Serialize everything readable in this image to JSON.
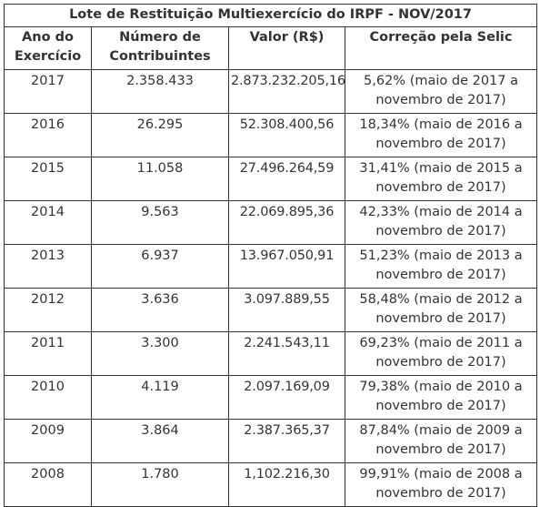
{
  "table": {
    "title": "Lote de Restituição Multiexercício do IRPF - NOV/2017",
    "headers": [
      "Ano do Exercício",
      "Número de Contribuintes",
      "Valor (R$)",
      "Correção pela Selic"
    ],
    "rows": [
      {
        "ano": "2017",
        "contribuintes": "2.358.433",
        "valor": "2.873.232.205,16",
        "correcao": "5,62% (maio de 2017 a novembro de 2017)"
      },
      {
        "ano": "2016",
        "contribuintes": "26.295",
        "valor": "52.308.400,56",
        "correcao": "18,34% (maio de 2016 a novembro de 2017)"
      },
      {
        "ano": "2015",
        "contribuintes": "11.058",
        "valor": "27.496.264,59",
        "correcao": "31,41% (maio de 2015 a novembro de 2017)"
      },
      {
        "ano": "2014",
        "contribuintes": "9.563",
        "valor": "22.069.895,36",
        "correcao": "42,33% (maio de 2014 a novembro de 2017)"
      },
      {
        "ano": "2013",
        "contribuintes": "6.937",
        "valor": "13.967.050,91",
        "correcao": "51,23% (maio de 2013 a novembro de 2017)"
      },
      {
        "ano": "2012",
        "contribuintes": "3.636",
        "valor": "3.097.889,55",
        "correcao": "58,48% (maio de 2012 a novembro de 2017)"
      },
      {
        "ano": "2011",
        "contribuintes": "3.300",
        "valor": "2.241.543,11",
        "correcao": "69,23% (maio de 2011 a novembro de 2017)"
      },
      {
        "ano": "2010",
        "contribuintes": "4.119",
        "valor": "2.097.169,09",
        "correcao": "79,38% (maio de 2010 a novembro de 2017)"
      },
      {
        "ano": "2009",
        "contribuintes": "3.864",
        "valor": "2.387.365,37",
        "correcao": "87,84% (maio de 2009 a novembro de 2017)"
      },
      {
        "ano": "2008",
        "contribuintes": "1.780",
        "valor": "1,102.216,30",
        "correcao": "99,91% (maio de 2008 a novembro de 2017)"
      }
    ]
  }
}
